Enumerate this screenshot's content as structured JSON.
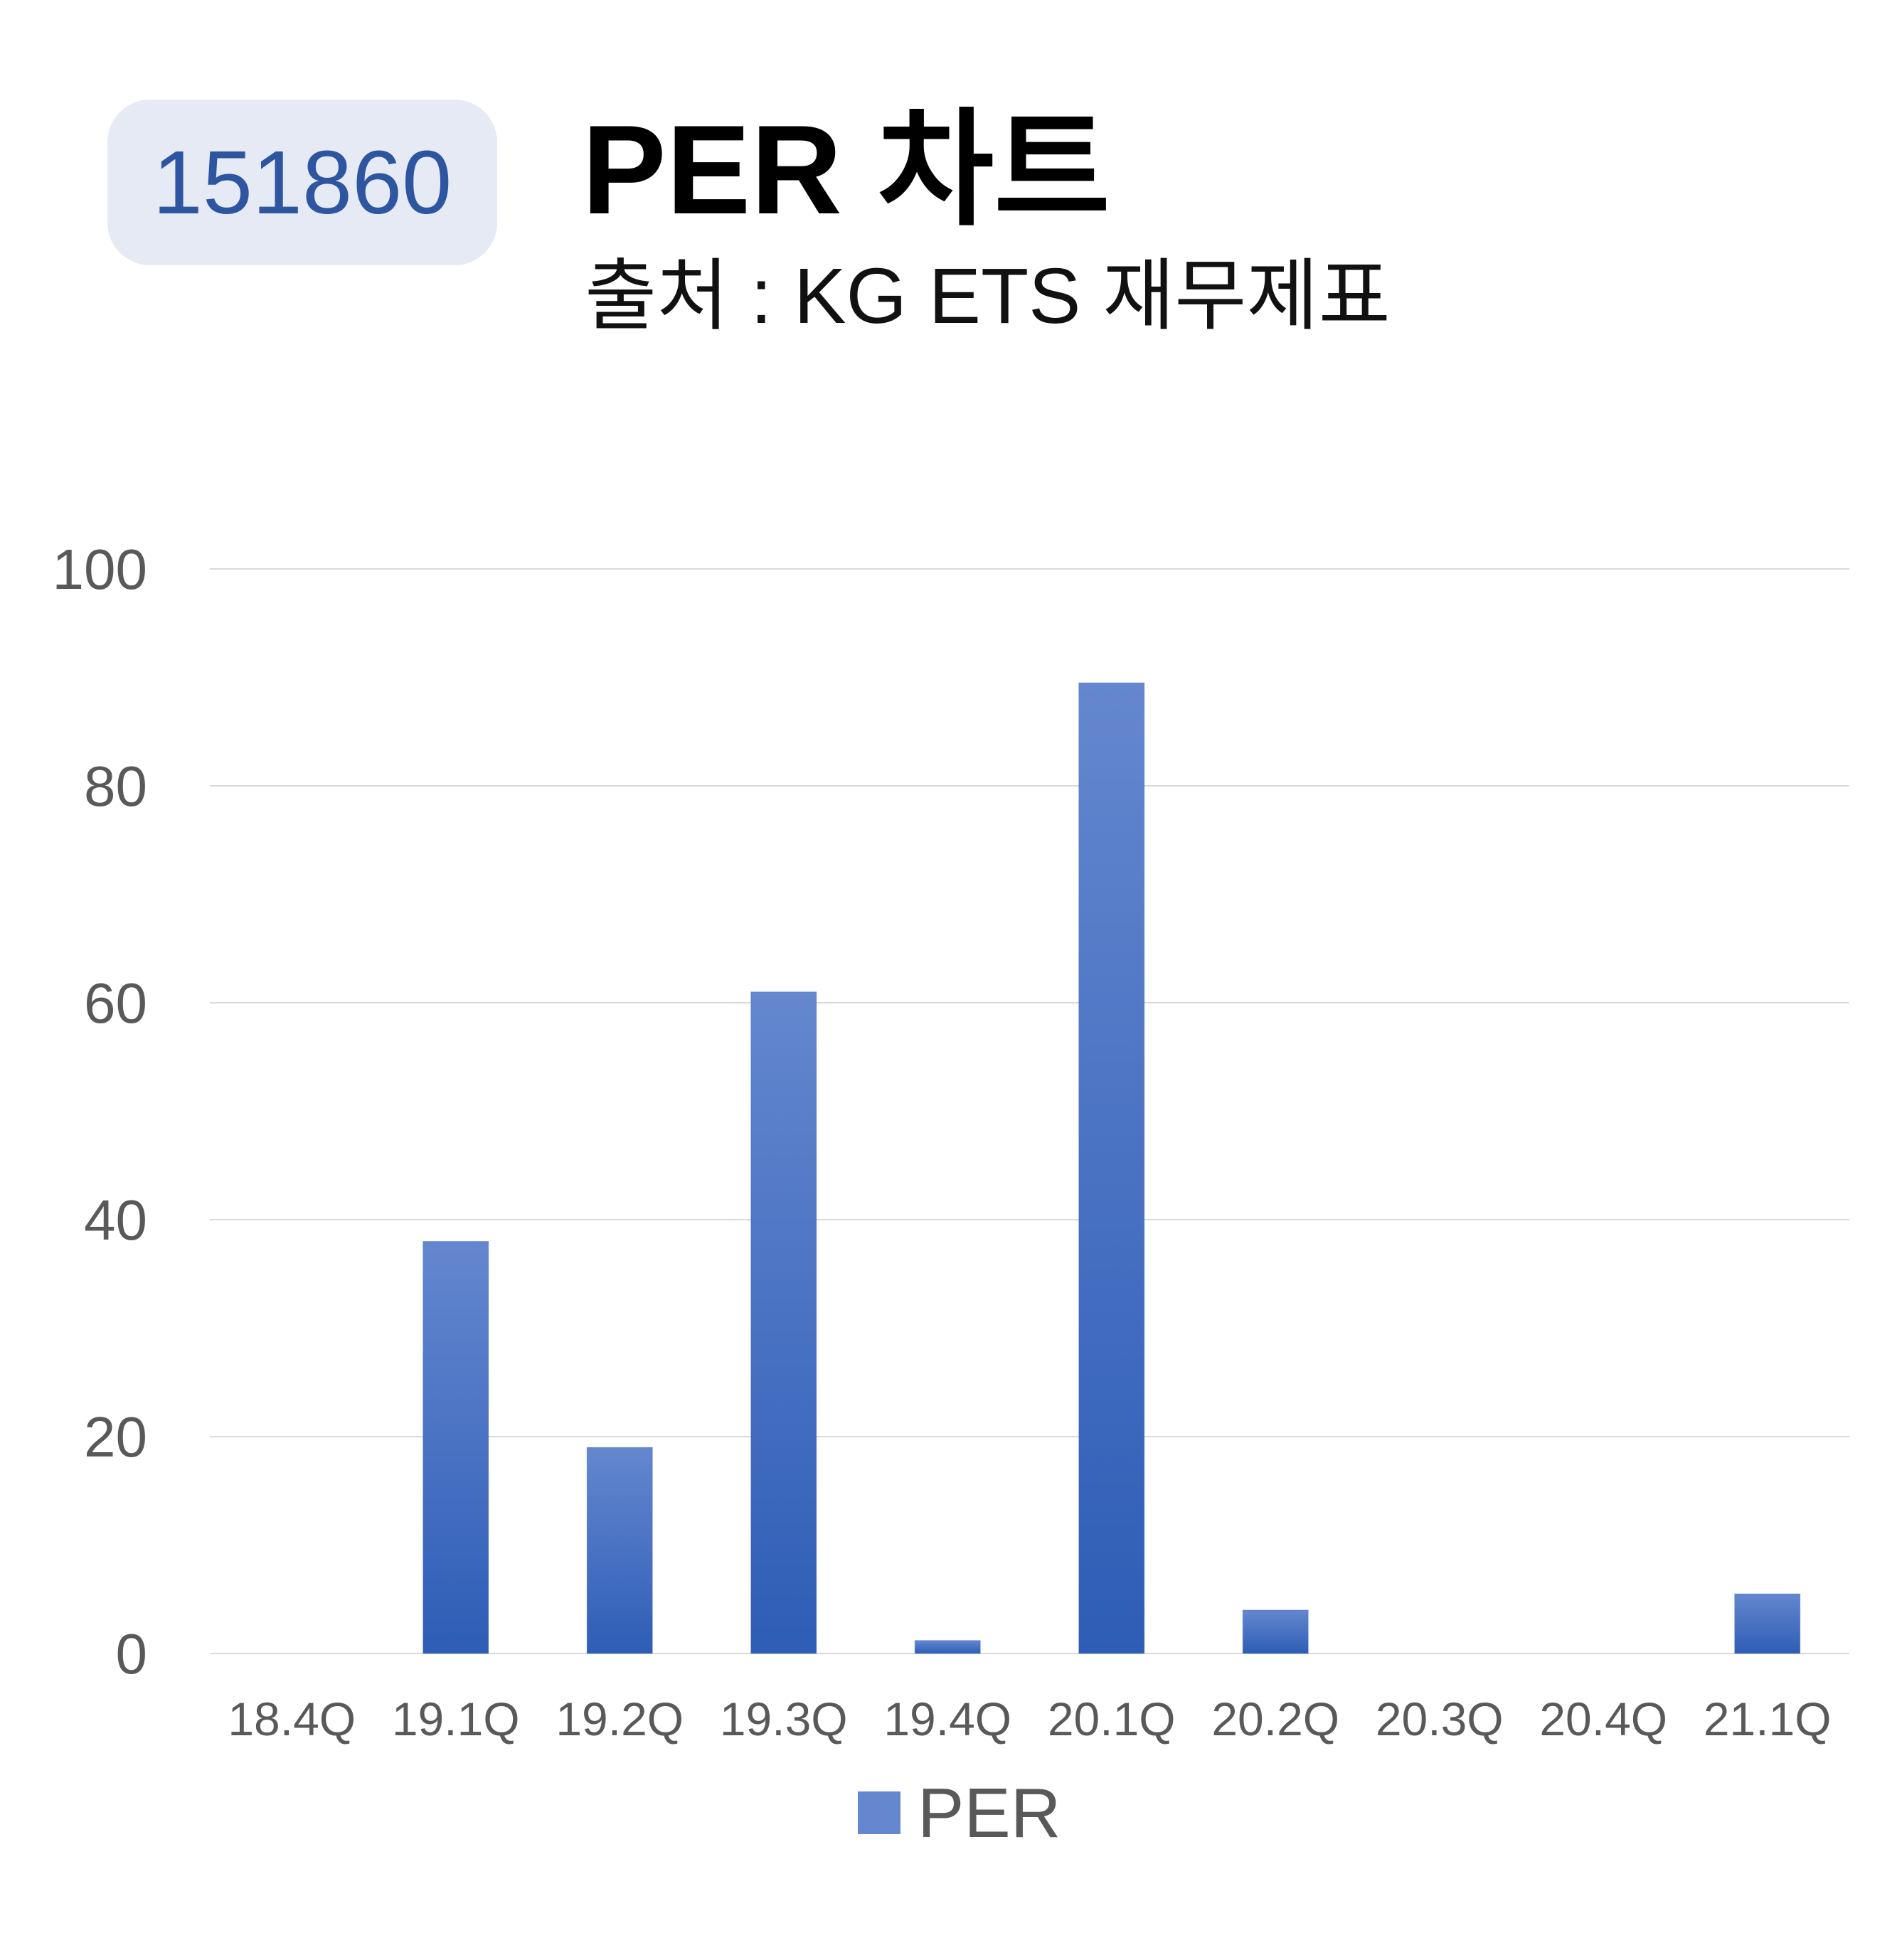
{
  "header": {
    "code": "151860",
    "title": "PER 차트",
    "subtitle": "출처 : KG ETS 재무제표"
  },
  "chart_data": {
    "type": "bar",
    "categories": [
      "18.4Q",
      "19.1Q",
      "19.2Q",
      "19.3Q",
      "19.4Q",
      "20.1Q",
      "20.2Q",
      "20.3Q",
      "20.4Q",
      "21.1Q"
    ],
    "series": [
      {
        "name": "PER",
        "values": [
          0,
          38,
          19,
          61,
          1.2,
          89.5,
          4,
          0,
          0,
          5.5
        ]
      }
    ],
    "y_ticks": [
      "0",
      "20",
      "40",
      "60",
      "80",
      "100"
    ],
    "ylim": [
      0,
      100
    ],
    "grid": true,
    "legend": "bottom-center",
    "colors": {
      "bar_top": "#6487cf",
      "bar_bottom": "#2e5db6",
      "grid": "#d9d9d9",
      "axis_text": "#595959"
    }
  }
}
